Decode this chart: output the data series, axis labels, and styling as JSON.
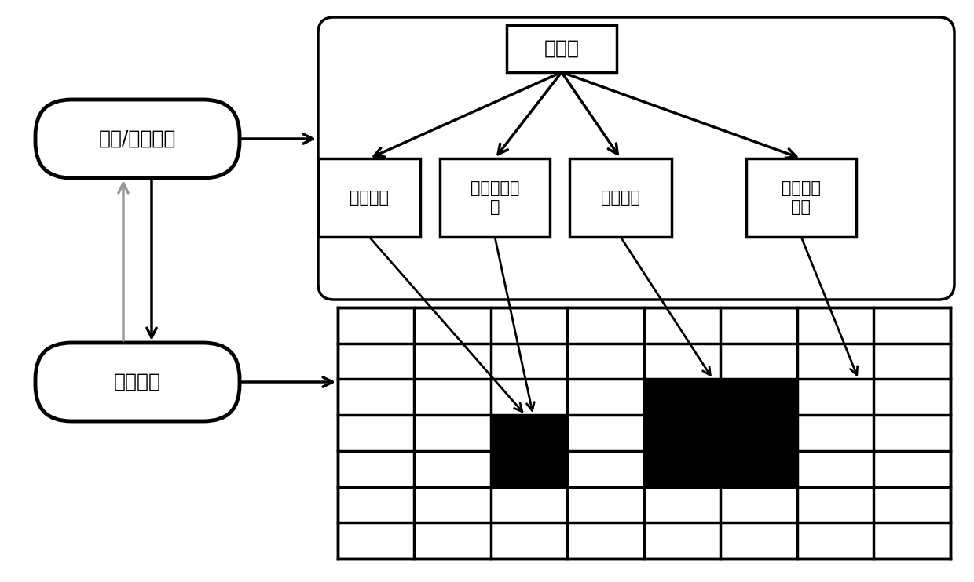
{
  "bg_color": "#ffffff",
  "text_color": "#000000",
  "rule_box_label": "规则/变换函数",
  "geo_box_label": "地理空间",
  "time_box_label": "时间集",
  "child_labels": [
    "元胞状态",
    "元胞属性信\n息",
    "邻居状态",
    "邻居属性\n信息"
  ],
  "grid_cols": 8,
  "grid_rows": 7,
  "font_size_large": 18,
  "font_size_medium": 16,
  "font_size_child": 15
}
